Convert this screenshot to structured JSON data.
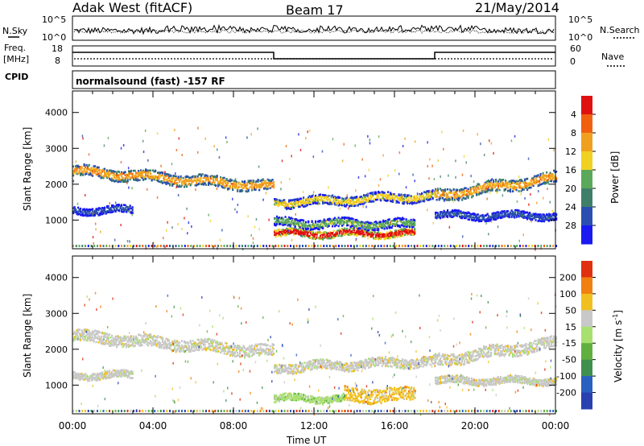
{
  "header": {
    "station": "Adak West (fitACF)",
    "beam": "Beam 17",
    "date": "21/May/2014"
  },
  "summary": {
    "nsky_label": "N.Sky",
    "nsearch_label": "N.Search",
    "nsky_ticks": [
      "10^5",
      "10^0"
    ],
    "nsearch_ticks": [
      "10^5",
      "10^0"
    ],
    "freq_label": "Freq.",
    "freq_unit": "[MHz]",
    "freq_ticks": [
      "18",
      "8"
    ],
    "nave_label": "Nave",
    "nave_ticks": [
      "60",
      "0"
    ],
    "cpid_label": "CPID",
    "cpid_text": "normalsound (fast) -157 RF"
  },
  "chart_data": [
    {
      "type": "heatmap",
      "name": "power",
      "ylabel": "Slant Range [km]",
      "xlabel": "Time UT",
      "x_ticks": [
        "00:00",
        "04:00",
        "08:00",
        "12:00",
        "16:00",
        "20:00",
        "00:00"
      ],
      "xlim": [
        0,
        24
      ],
      "ylim": [
        200,
        4600
      ],
      "y_ticks": [
        1000,
        2000,
        3000,
        4000
      ],
      "colorbar": {
        "label": "Power [dB]",
        "ticks": [
          "4",
          "8",
          "12",
          "16",
          "20",
          "24",
          "28"
        ],
        "colors": [
          "#1a1af0",
          "#2a4fb0",
          "#3f7f6a",
          "#5aa85a",
          "#f0d020",
          "#f0a020",
          "#f06010",
          "#e01010"
        ]
      },
      "bands": [
        {
          "x0": 0,
          "x1": 10,
          "y_start": 2400,
          "y_end": 1950,
          "width": 300,
          "level": 5
        },
        {
          "x0": 10,
          "x1": 18,
          "y_start": 1500,
          "y_end": 1700,
          "width": 260,
          "level": 4
        },
        {
          "x0": 18,
          "x1": 24,
          "y_start": 1700,
          "y_end": 2200,
          "width": 320,
          "level": 5
        },
        {
          "x0": 0,
          "x1": 3,
          "y_start": 1300,
          "y_end": 1300,
          "width": 200,
          "level": 1
        },
        {
          "x0": 10,
          "x1": 17,
          "y_start": 650,
          "y_end": 650,
          "width": 200,
          "level": 7
        },
        {
          "x0": 10,
          "x1": 17,
          "y_start": 950,
          "y_end": 900,
          "width": 250,
          "level": 3
        },
        {
          "x0": 18,
          "x1": 24,
          "y_start": 1150,
          "y_end": 1150,
          "width": 200,
          "level": 1
        }
      ]
    },
    {
      "type": "heatmap",
      "name": "velocity",
      "ylabel": "Slant Range [km]",
      "xlabel": "Time UT",
      "x_ticks": [
        "00:00",
        "04:00",
        "08:00",
        "12:00",
        "16:00",
        "20:00",
        "00:00"
      ],
      "xlim": [
        0,
        24
      ],
      "ylim": [
        200,
        4600
      ],
      "y_ticks": [
        1000,
        2000,
        3000,
        4000
      ],
      "colorbar": {
        "label": "Velocity [m s",
        "label_sup": "-1",
        "label_end": "]",
        "ticks": [
          "200",
          "100",
          "50",
          "15",
          "-15",
          "-50",
          "-100",
          "-200"
        ],
        "colors": [
          "#2a3fb0",
          "#2a60c0",
          "#3f8f4f",
          "#60b040",
          "#a8e070",
          "#c8c8c8",
          "#f0c020",
          "#f08010",
          "#e03010"
        ]
      },
      "bands": [
        {
          "x0": 0,
          "x1": 10,
          "y_start": 2400,
          "y_end": 1950,
          "width": 320,
          "level": 5
        },
        {
          "x0": 10,
          "x1": 18,
          "y_start": 1500,
          "y_end": 1700,
          "width": 260,
          "level": 5
        },
        {
          "x0": 18,
          "x1": 24,
          "y_start": 1700,
          "y_end": 2200,
          "width": 320,
          "level": 5
        },
        {
          "x0": 0,
          "x1": 3,
          "y_start": 1300,
          "y_end": 1300,
          "width": 200,
          "level": 5
        },
        {
          "x0": 10,
          "x1": 13.5,
          "y_start": 650,
          "y_end": 650,
          "width": 200,
          "level": 4
        },
        {
          "x0": 13.5,
          "x1": 17,
          "y_start": 750,
          "y_end": 750,
          "width": 400,
          "level": 6
        },
        {
          "x0": 18,
          "x1": 24,
          "y_start": 1150,
          "y_end": 1150,
          "width": 200,
          "level": 5
        }
      ]
    }
  ]
}
